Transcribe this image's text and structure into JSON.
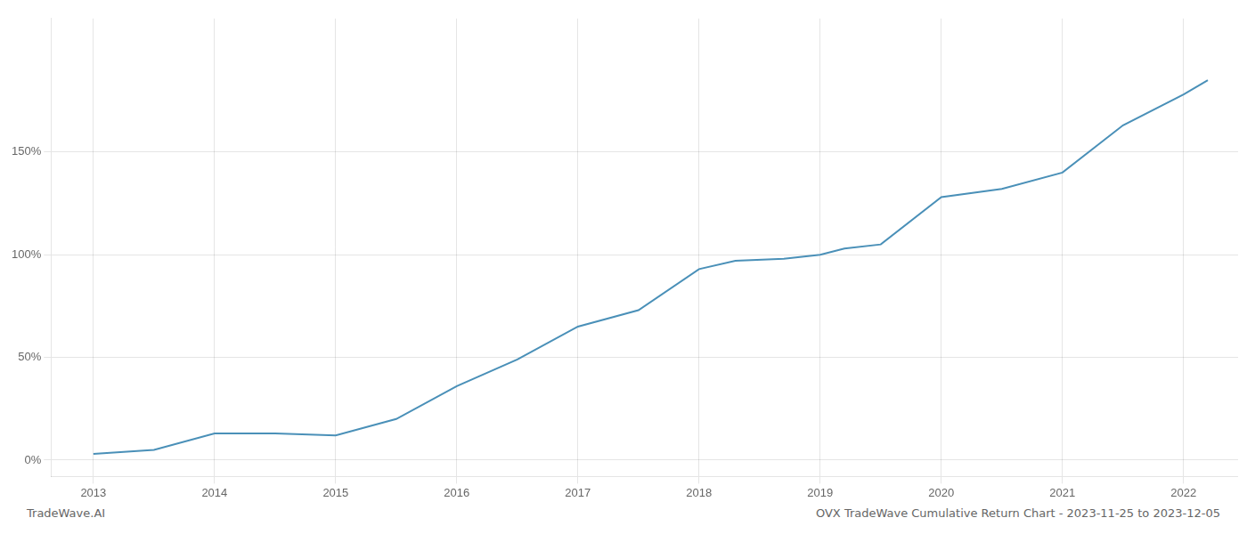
{
  "chart_data": {
    "type": "line",
    "x": [
      2013.0,
      2013.5,
      2014.0,
      2014.5,
      2015.0,
      2015.5,
      2016.0,
      2016.5,
      2017.0,
      2017.5,
      2018.0,
      2018.3,
      2018.7,
      2019.0,
      2019.2,
      2019.5,
      2020.0,
      2020.5,
      2021.0,
      2021.5,
      2022.0,
      2022.2
    ],
    "values": [
      3,
      5,
      13,
      13,
      12,
      20,
      36,
      49,
      65,
      73,
      93,
      97,
      98,
      100,
      103,
      105,
      128,
      132,
      140,
      163,
      178,
      185
    ],
    "color": "#4a90b8",
    "xlim": [
      2012.65,
      2022.45
    ],
    "xticks": [
      2013,
      2014,
      2015,
      2016,
      2017,
      2018,
      2019,
      2020,
      2021,
      2022
    ],
    "ylim": [
      -8,
      215
    ],
    "yticks": [
      {
        "value": 0,
        "label": "0%"
      },
      {
        "value": 50,
        "label": "50%"
      },
      {
        "value": 100,
        "label": "100%"
      },
      {
        "value": 150,
        "label": "150%"
      }
    ],
    "grid": true,
    "annotations": [
      "TradeWave.AI",
      "OVX TradeWave Cumulative Return Chart - 2023-11-25 to 2023-12-05"
    ]
  }
}
